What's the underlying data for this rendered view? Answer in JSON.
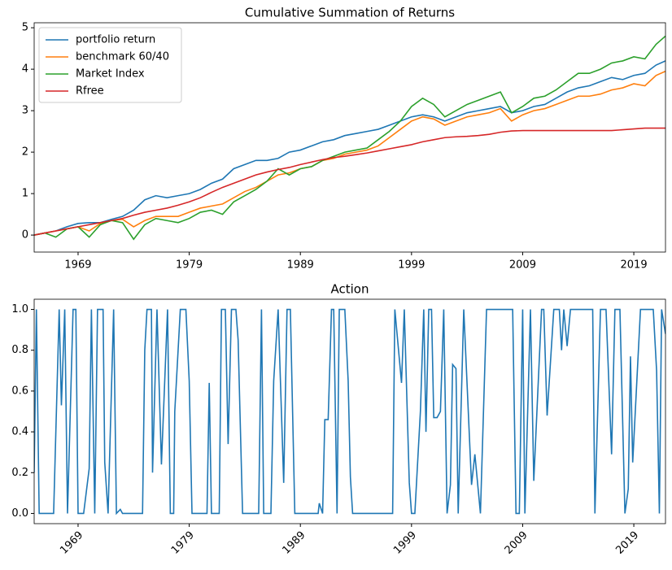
{
  "chart_data": [
    {
      "type": "line",
      "title": "Cumulative Summation of Returns",
      "x": [
        1965.05,
        1966,
        1967,
        1968,
        1969,
        1970,
        1971,
        1972,
        1973,
        1974,
        1975,
        1976,
        1977,
        1978,
        1979,
        1980,
        1981,
        1982,
        1983,
        1984,
        1985,
        1986,
        1987,
        1988,
        1989,
        1990,
        1991,
        1992,
        1993,
        1994,
        1995,
        1996,
        1997,
        1998,
        1999,
        2000,
        2001,
        2002,
        2003,
        2004,
        2005,
        2006,
        2007,
        2008,
        2009,
        2010,
        2011,
        2012,
        2013,
        2014,
        2015,
        2016,
        2017,
        2018,
        2019,
        2020,
        2021,
        2021.85
      ],
      "series": [
        {
          "name": "portfolio return",
          "color": "#1f77b4",
          "values": [
            0,
            0.05,
            0.1,
            0.2,
            0.28,
            0.3,
            0.3,
            0.38,
            0.45,
            0.6,
            0.85,
            0.95,
            0.9,
            0.95,
            1.0,
            1.1,
            1.25,
            1.35,
            1.6,
            1.7,
            1.8,
            1.8,
            1.85,
            2.0,
            2.05,
            2.15,
            2.25,
            2.3,
            2.4,
            2.45,
            2.5,
            2.55,
            2.65,
            2.75,
            2.85,
            2.9,
            2.85,
            2.75,
            2.85,
            2.95,
            3.0,
            3.05,
            3.1,
            2.95,
            3.0,
            3.1,
            3.15,
            3.3,
            3.45,
            3.55,
            3.6,
            3.7,
            3.8,
            3.75,
            3.85,
            3.9,
            4.1,
            4.2
          ]
        },
        {
          "name": "benchmark 60/40",
          "color": "#ff7f0e",
          "values": [
            0,
            0.05,
            0.1,
            0.15,
            0.2,
            0.1,
            0.28,
            0.35,
            0.38,
            0.2,
            0.35,
            0.45,
            0.45,
            0.45,
            0.55,
            0.65,
            0.7,
            0.75,
            0.9,
            1.05,
            1.15,
            1.3,
            1.45,
            1.5,
            1.6,
            1.65,
            1.8,
            1.85,
            1.95,
            2.0,
            2.05,
            2.15,
            2.35,
            2.55,
            2.75,
            2.85,
            2.8,
            2.65,
            2.75,
            2.85,
            2.9,
            2.95,
            3.05,
            2.75,
            2.9,
            3.0,
            3.05,
            3.15,
            3.25,
            3.35,
            3.35,
            3.4,
            3.5,
            3.55,
            3.65,
            3.6,
            3.85,
            3.95
          ]
        },
        {
          "name": "Market Index",
          "color": "#2ca02c",
          "values": [
            0,
            0.05,
            -0.05,
            0.15,
            0.2,
            -0.05,
            0.25,
            0.35,
            0.3,
            -0.1,
            0.25,
            0.4,
            0.35,
            0.3,
            0.4,
            0.55,
            0.6,
            0.5,
            0.8,
            0.95,
            1.1,
            1.3,
            1.6,
            1.45,
            1.6,
            1.65,
            1.8,
            1.9,
            2.0,
            2.05,
            2.1,
            2.3,
            2.5,
            2.75,
            3.1,
            3.3,
            3.15,
            2.85,
            3.0,
            3.15,
            3.25,
            3.35,
            3.45,
            2.95,
            3.1,
            3.3,
            3.35,
            3.5,
            3.7,
            3.9,
            3.9,
            4.0,
            4.15,
            4.2,
            4.3,
            4.25,
            4.6,
            4.8
          ]
        },
        {
          "name": "Rfree",
          "color": "#d62728",
          "values": [
            0,
            0.05,
            0.1,
            0.15,
            0.2,
            0.25,
            0.3,
            0.35,
            0.4,
            0.48,
            0.55,
            0.6,
            0.65,
            0.72,
            0.8,
            0.9,
            1.03,
            1.15,
            1.25,
            1.35,
            1.45,
            1.52,
            1.58,
            1.63,
            1.7,
            1.76,
            1.82,
            1.87,
            1.9,
            1.94,
            1.98,
            2.03,
            2.08,
            2.13,
            2.18,
            2.25,
            2.3,
            2.35,
            2.37,
            2.38,
            2.4,
            2.43,
            2.48,
            2.51,
            2.52,
            2.52,
            2.52,
            2.52,
            2.52,
            2.52,
            2.52,
            2.52,
            2.52,
            2.54,
            2.56,
            2.58,
            2.58,
            2.58
          ]
        }
      ],
      "xlim": [
        1965.05,
        2021.85
      ],
      "xticks": [
        1969,
        1979,
        1989,
        1999,
        2009,
        2019
      ],
      "ylim": [
        -0.41,
        5.12
      ],
      "yticks": [
        0,
        1,
        2,
        3,
        4,
        5
      ],
      "legend": "upper left"
    },
    {
      "type": "line",
      "title": "Action",
      "color": "#1f77b4",
      "x": [
        1965.05,
        1965.25,
        1965.5,
        1966.8,
        1967.3,
        1967.5,
        1967.8,
        1968.05,
        1968.55,
        1968.8,
        1969.0,
        1969.5,
        1970.0,
        1970.2,
        1970.5,
        1970.75,
        1971.25,
        1971.4,
        1971.7,
        1972.2,
        1972.45,
        1972.8,
        1973.0,
        1974.8,
        1975.0,
        1975.2,
        1975.6,
        1975.7,
        1976.1,
        1976.5,
        1977.05,
        1977.3,
        1977.6,
        1977.7,
        1978.2,
        1978.7,
        1979.0,
        1979.25,
        1980.6,
        1980.8,
        1981.0,
        1981.7,
        1981.9,
        1982.25,
        1982.5,
        1982.8,
        1983.2,
        1983.4,
        1983.8,
        1985.25,
        1985.5,
        1985.7,
        1986.35,
        1986.6,
        1987.0,
        1987.5,
        1987.8,
        1988.1,
        1988.5,
        1990.6,
        1990.7,
        1991.0,
        1991.2,
        1991.5,
        1991.8,
        1992.0,
        1992.3,
        1992.5,
        1993.0,
        1993.3,
        1993.5,
        1993.7,
        1997.3,
        1997.5,
        1998.1,
        1998.35,
        1998.8,
        1999.0,
        1999.3,
        1999.8,
        2000.1,
        2000.3,
        2000.55,
        2000.8,
        2001.0,
        2001.3,
        2001.6,
        2001.9,
        2002.2,
        2002.5,
        2002.7,
        2003.0,
        2003.2,
        2003.7,
        2004.4,
        2004.7,
        2005.2,
        2005.75,
        2008.1,
        2008.4,
        2008.7,
        2009.0,
        2009.2,
        2009.7,
        2010.0,
        2010.7,
        2010.9,
        2011.2,
        2011.8,
        2012.3,
        2012.5,
        2012.7,
        2013.0,
        2013.3,
        2015.3,
        2015.5,
        2016.0,
        2016.5,
        2017.0,
        2017.3,
        2017.75,
        2018.2,
        2018.5,
        2018.7,
        2018.9,
        2019.6,
        2020.75,
        2021.05,
        2021.3,
        2021.5,
        2021.85
      ],
      "values": [
        0.2,
        1,
        0,
        0,
        1,
        0.53,
        1,
        0,
        1,
        1,
        0,
        0,
        0.22,
        1,
        0,
        1,
        1,
        0.25,
        0,
        1,
        0,
        0.02,
        0,
        0,
        0.8,
        1,
        1,
        0.2,
        1,
        0.24,
        1,
        0,
        0,
        0.5,
        1,
        1,
        0.65,
        0,
        0,
        0.64,
        0,
        0,
        1,
        1,
        0.34,
        1,
        1,
        0.85,
        0,
        0,
        1,
        0,
        0,
        0.65,
        1,
        0.15,
        1,
        1,
        0,
        0,
        0.05,
        0,
        0.46,
        0.46,
        1,
        1,
        0,
        1,
        1,
        0.65,
        0.18,
        0,
        0,
        1,
        0.64,
        1,
        0.15,
        0,
        0,
        0.5,
        1,
        0.4,
        1,
        1,
        0.47,
        0.47,
        0.5,
        1,
        0,
        0.14,
        0.73,
        0.71,
        0,
        1,
        0.14,
        0.29,
        0,
        1,
        1,
        0,
        0,
        1,
        0,
        1,
        0.16,
        1,
        1,
        0.48,
        1,
        1,
        0.8,
        1,
        0.82,
        1,
        1,
        0,
        1,
        1,
        0.29,
        1,
        1,
        0,
        0.12,
        0.77,
        0.25,
        1,
        1,
        0.7,
        0,
        1,
        0.88
      ],
      "xlim": [
        1965.05,
        2021.85
      ],
      "xticks": [
        1969,
        1979,
        1989,
        1999,
        2009,
        2019
      ],
      "ylim": [
        -0.05,
        1.05
      ],
      "yticks": [
        {
          "value": 0,
          "label": "0.0"
        },
        {
          "value": 0.2,
          "label": "0.2"
        },
        {
          "value": 0.4,
          "label": "0.4"
        },
        {
          "value": 0.6,
          "label": "0.6"
        },
        {
          "value": 0.8,
          "label": "0.8"
        },
        {
          "value": 1,
          "label": "1.0"
        }
      ],
      "xtick_rotation": 45
    }
  ]
}
